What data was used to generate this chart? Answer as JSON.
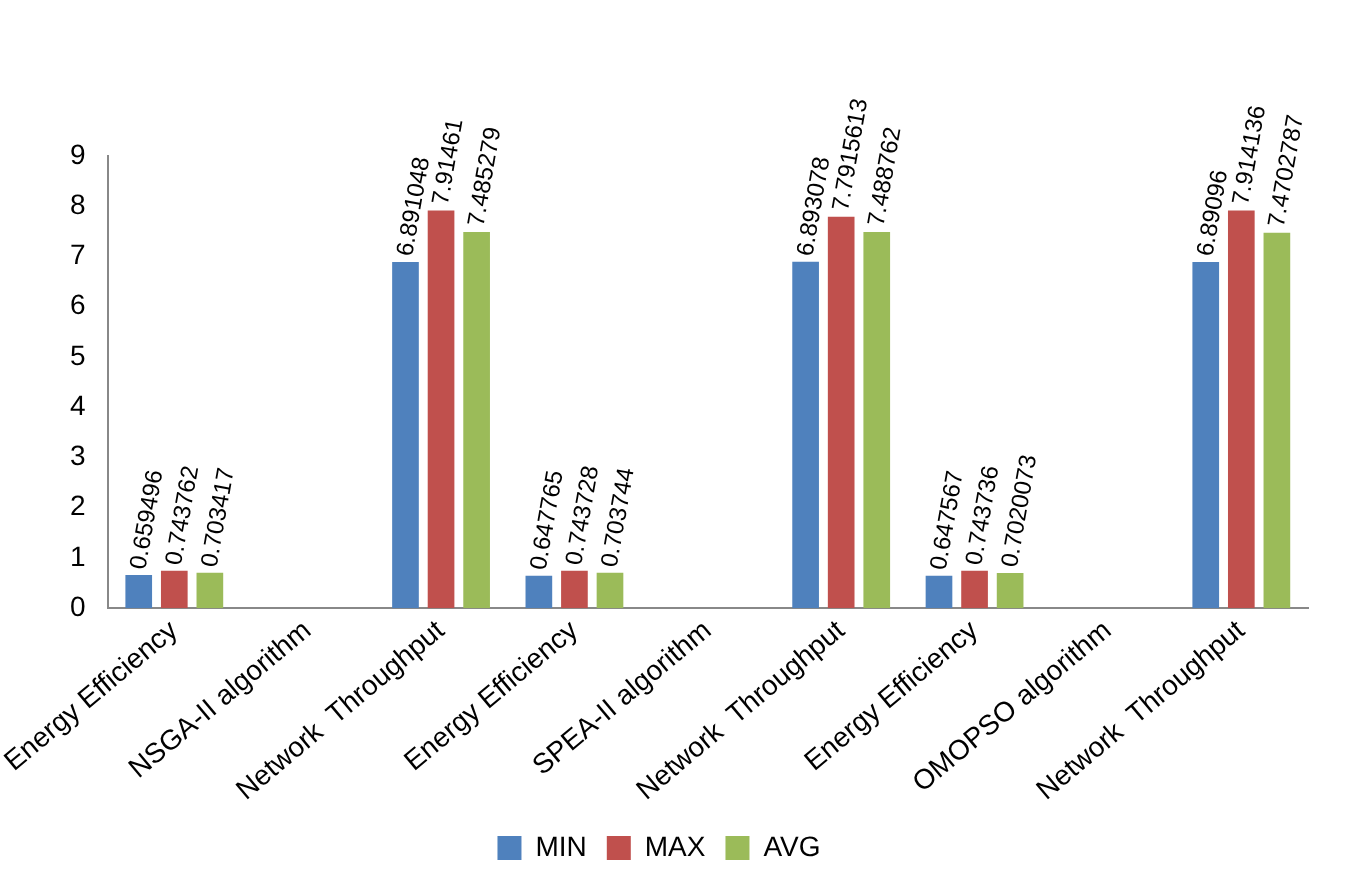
{
  "chart_data": {
    "type": "bar",
    "categories": [
      "Energy Efficiency",
      "NSGA-II algorithm",
      "Network  Throughput",
      "Energy Efficiency",
      "SPEA-II algorithm",
      "Network  Throughput",
      "Energy Efficiency",
      "OMOPSO algorithm",
      "Network  Throughput"
    ],
    "series": [
      {
        "name": "MIN",
        "color": "#4f81bd",
        "values": [
          0.659496,
          null,
          6.891048,
          0.647765,
          null,
          6.893078,
          0.647567,
          null,
          6.89096
        ]
      },
      {
        "name": "MAX",
        "color": "#c0504d",
        "values": [
          0.743762,
          null,
          7.91461,
          0.743728,
          null,
          7.7915613,
          0.743736,
          null,
          7.914136
        ]
      },
      {
        "name": "AVG",
        "color": "#9bbb59",
        "values": [
          0.703417,
          null,
          7.485279,
          0.703744,
          null,
          7.488762,
          0.7020073,
          null,
          7.4702787
        ]
      }
    ],
    "ylim": [
      0,
      9
    ],
    "yticks": [
      0,
      1,
      2,
      3,
      4,
      5,
      6,
      7,
      8,
      9
    ],
    "grid": false,
    "legend": "bottom",
    "data_labels": true
  }
}
